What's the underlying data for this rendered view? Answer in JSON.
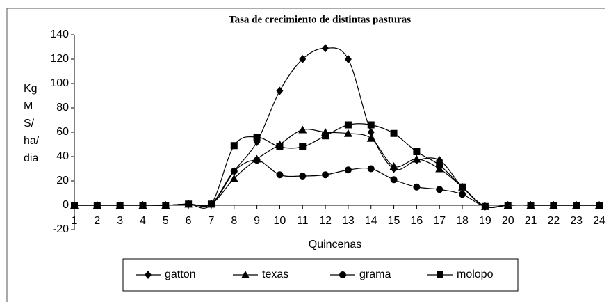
{
  "chart_data": {
    "type": "line",
    "title": "Tasa de crecimiento de distintas pasturas",
    "x_label": "Quincenas",
    "y_label": [
      "Kg",
      "M",
      "S/",
      "ha/",
      "dia"
    ],
    "categories": [
      "1",
      "2",
      "3",
      "4",
      "5",
      "6",
      "7",
      "8",
      "9",
      "10",
      "11",
      "12",
      "13",
      "14",
      "15",
      "16",
      "17",
      "18",
      "19",
      "20",
      "21",
      "22",
      "23",
      "24"
    ],
    "ylim": [
      -20,
      140
    ],
    "yticks": [
      -20,
      0,
      20,
      40,
      60,
      80,
      100,
      120,
      140
    ],
    "series": [
      {
        "name": "gatton",
        "marker": "diamond",
        "color": "#000000",
        "values": [
          0,
          0,
          0,
          0,
          0,
          1,
          1,
          28,
          52,
          94,
          120,
          129,
          120,
          60,
          30,
          37,
          37,
          15,
          -1,
          0,
          0,
          0,
          0,
          0
        ]
      },
      {
        "name": "texas",
        "marker": "triangle",
        "color": "#000000",
        "values": [
          0,
          0,
          0,
          0,
          0,
          1,
          1,
          22,
          38,
          50,
          62,
          60,
          59,
          55,
          32,
          38,
          30,
          15,
          -1,
          0,
          0,
          0,
          0,
          0
        ]
      },
      {
        "name": "grama",
        "marker": "circle",
        "color": "#000000",
        "values": [
          0,
          0,
          0,
          0,
          0,
          1,
          1,
          28,
          37,
          25,
          24,
          25,
          29,
          30,
          21,
          15,
          13,
          9,
          -1,
          0,
          0,
          0,
          0,
          0
        ]
      },
      {
        "name": "molopo",
        "marker": "square",
        "color": "#000000",
        "values": [
          0,
          0,
          0,
          0,
          0,
          1,
          1,
          49,
          56,
          48,
          48,
          57,
          66,
          66,
          59,
          44,
          33,
          15,
          -1,
          0,
          0,
          0,
          0,
          0
        ]
      }
    ]
  }
}
